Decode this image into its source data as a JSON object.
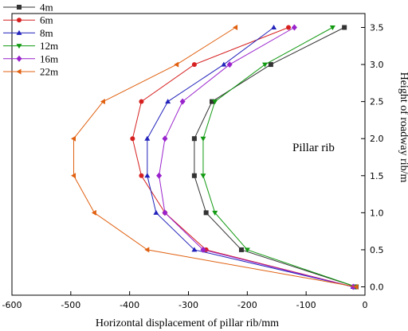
{
  "chart_data": {
    "type": "line",
    "xlabel": "Horizontal displacement of pillar rib/mm",
    "ylabel": "Height of roadway rib/m",
    "xlim": [
      -600,
      0
    ],
    "ylim": [
      0,
      3.6
    ],
    "x_ticks": [
      -600,
      -500,
      -400,
      -300,
      -200,
      -100,
      0
    ],
    "y_ticks": [
      0.0,
      0.5,
      1.0,
      1.5,
      2.0,
      2.5,
      3.0,
      3.5
    ],
    "annotation": "Pillar rib",
    "legend_position": "top-left",
    "y_axis_side": "right",
    "series": [
      {
        "name": "4m",
        "color": "#333333",
        "marker": "square",
        "points": [
          [
            -15,
            0.0
          ],
          [
            -210,
            0.5
          ],
          [
            -270,
            1.0
          ],
          [
            -290,
            1.5
          ],
          [
            -290,
            2.0
          ],
          [
            -260,
            2.5
          ],
          [
            -160,
            3.0
          ],
          [
            -35,
            3.5
          ]
        ]
      },
      {
        "name": "6m",
        "color": "#d62020",
        "marker": "circle",
        "points": [
          [
            -20,
            0.0
          ],
          [
            -270,
            0.5
          ],
          [
            -340,
            1.0
          ],
          [
            -380,
            1.5
          ],
          [
            -395,
            2.0
          ],
          [
            -380,
            2.5
          ],
          [
            -290,
            3.0
          ],
          [
            -130,
            3.5
          ]
        ]
      },
      {
        "name": "8m",
        "color": "#2222bb",
        "marker": "triangle-up",
        "points": [
          [
            -20,
            0.0
          ],
          [
            -290,
            0.5
          ],
          [
            -355,
            1.0
          ],
          [
            -370,
            1.5
          ],
          [
            -370,
            2.0
          ],
          [
            -335,
            2.5
          ],
          [
            -240,
            3.0
          ],
          [
            -155,
            3.5
          ]
        ]
      },
      {
        "name": "12m",
        "color": "#119911",
        "marker": "triangle-down",
        "points": [
          [
            -15,
            0.0
          ],
          [
            -200,
            0.5
          ],
          [
            -255,
            1.0
          ],
          [
            -275,
            1.5
          ],
          [
            -275,
            2.0
          ],
          [
            -255,
            2.5
          ],
          [
            -170,
            3.0
          ],
          [
            -55,
            3.5
          ]
        ]
      },
      {
        "name": "16m",
        "color": "#9922cc",
        "marker": "diamond",
        "points": [
          [
            -20,
            0.0
          ],
          [
            -275,
            0.5
          ],
          [
            -340,
            1.0
          ],
          [
            -350,
            1.5
          ],
          [
            -340,
            2.0
          ],
          [
            -310,
            2.5
          ],
          [
            -230,
            3.0
          ],
          [
            -120,
            3.5
          ]
        ]
      },
      {
        "name": "22m",
        "color": "#e06010",
        "marker": "triangle-left",
        "points": [
          [
            -15,
            0.0
          ],
          [
            -370,
            0.5
          ],
          [
            -460,
            1.0
          ],
          [
            -495,
            1.5
          ],
          [
            -495,
            2.0
          ],
          [
            -445,
            2.5
          ],
          [
            -320,
            3.0
          ],
          [
            -220,
            3.5
          ]
        ]
      }
    ]
  }
}
